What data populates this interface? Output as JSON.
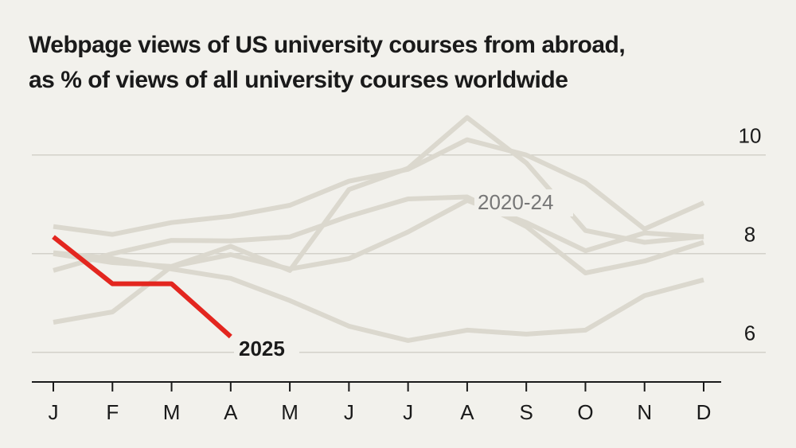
{
  "chart_data": {
    "type": "line",
    "title_lines": [
      "Webpage views of US university courses from abroad,",
      "as % of views of all university courses worldwide"
    ],
    "categories": [
      "J",
      "F",
      "M",
      "A",
      "M",
      "J",
      "J",
      "A",
      "S",
      "O",
      "N",
      "D"
    ],
    "series": [
      {
        "name": "2020-24",
        "color": "#dbd8ce",
        "values": [
          [
            8.55,
            8.39,
            8.63,
            8.76,
            8.98,
            9.47,
            9.71,
            10.31,
            10.0,
            9.44,
            8.5,
            9.03
          ],
          [
            8.0,
            7.82,
            7.74,
            8.15,
            7.66,
            9.3,
            9.73,
            10.76,
            9.84,
            8.47,
            8.23,
            8.35
          ],
          [
            7.66,
            8.0,
            8.27,
            8.26,
            8.34,
            8.76,
            9.11,
            9.15,
            8.55,
            7.61,
            7.85,
            8.23
          ],
          [
            6.61,
            6.82,
            7.74,
            7.98,
            7.69,
            7.9,
            8.44,
            9.08,
            8.63,
            8.06,
            8.42,
            8.34
          ],
          [
            8.02,
            7.9,
            7.69,
            7.5,
            7.05,
            6.53,
            6.24,
            6.45,
            6.37,
            6.45,
            7.15,
            7.47
          ]
        ]
      },
      {
        "name": "2025",
        "color": "#e3261f",
        "values": [
          8.34,
          7.39,
          7.39,
          6.32,
          null,
          null,
          null,
          null,
          null,
          null,
          null,
          null
        ]
      }
    ],
    "ylim": [
      5.4,
      10.9
    ],
    "yticks": [
      6,
      8,
      10
    ],
    "grid": true
  }
}
